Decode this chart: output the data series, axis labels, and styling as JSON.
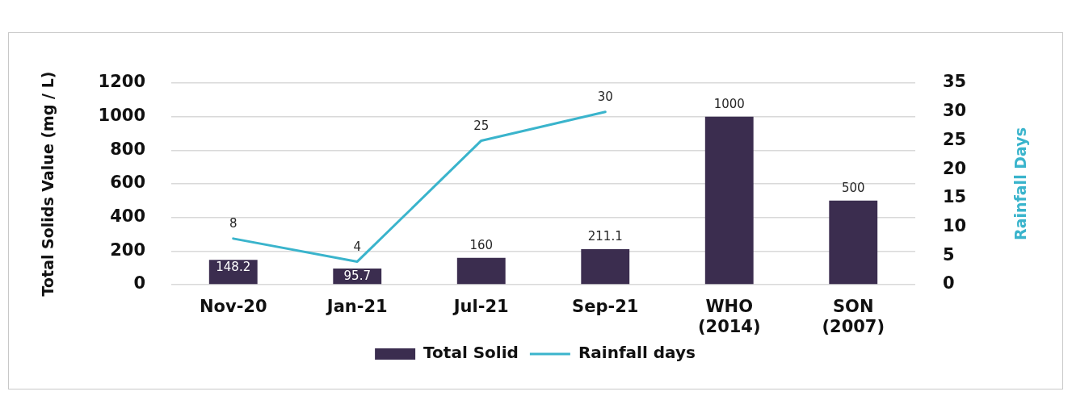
{
  "chart_data": {
    "type": "bar",
    "categories": [
      "Nov-20",
      "Jan-21",
      "Jul-21",
      "Sep-21",
      "WHO (2014)",
      "SON (2007)"
    ],
    "series": [
      {
        "name": "Total Solid",
        "color": "#3b2d4f",
        "values": [
          148.2,
          95.7,
          160,
          211.1,
          1000,
          500
        ]
      },
      {
        "name": "Rainfall days",
        "type": "line",
        "axis": "y2",
        "color": "#3ab4cc",
        "values": [
          8,
          4,
          25,
          30,
          null,
          null
        ]
      }
    ],
    "ylabel": "Total Solids Value (mg / L)",
    "y2label": "Rainfall Days",
    "ylim": [
      0,
      1200
    ],
    "yticks": [
      0,
      200,
      400,
      600,
      800,
      1000,
      1200
    ],
    "y2lim": [
      0,
      35
    ],
    "y2ticks": [
      0,
      5,
      10,
      15,
      20,
      25,
      30,
      35
    ],
    "grid": "y",
    "legend": "bottom",
    "data_labels": true,
    "marker": "none",
    "line_style": "solid"
  }
}
